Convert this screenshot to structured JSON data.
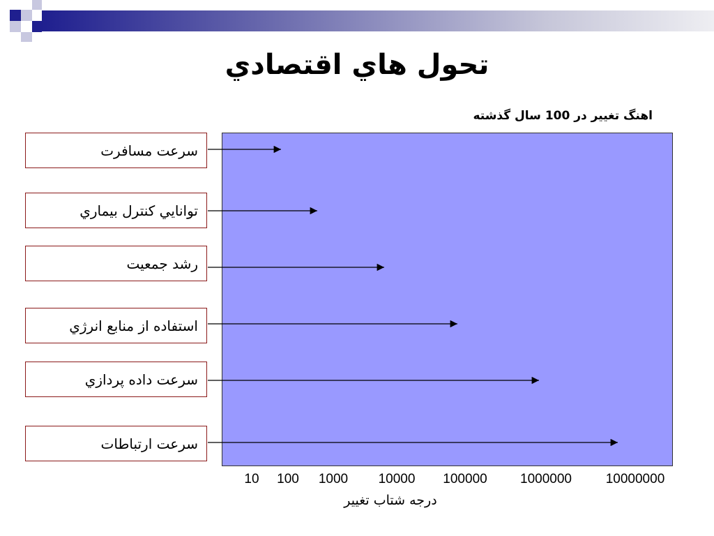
{
  "title": "تحول هاي اقتصادي",
  "subtitle": "اهنگ تغيير در 100 سال گذشته",
  "items": [
    {
      "label": "سرعت مسافرت",
      "value": 100
    },
    {
      "label": "توانايي كنترل بيماري",
      "value": 1000
    },
    {
      "label": "رشد جمعيت",
      "value": 10000
    },
    {
      "label": "استفاده از منابع انرژي",
      "value": 100000
    },
    {
      "label": "سرعت داده پردازي",
      "value": 1000000
    },
    {
      "label": "سرعت ارتباطات",
      "value": 10000000
    }
  ],
  "axis": {
    "ticks": [
      "10",
      "100",
      "1000",
      "10000",
      "100000",
      "1000000",
      "10000000"
    ],
    "label": "درجه شتاب تغيير"
  },
  "colors": {
    "panel": "#9999ff",
    "box_border": "#8b1a1a",
    "header_dark": "#1f1f8f"
  }
}
